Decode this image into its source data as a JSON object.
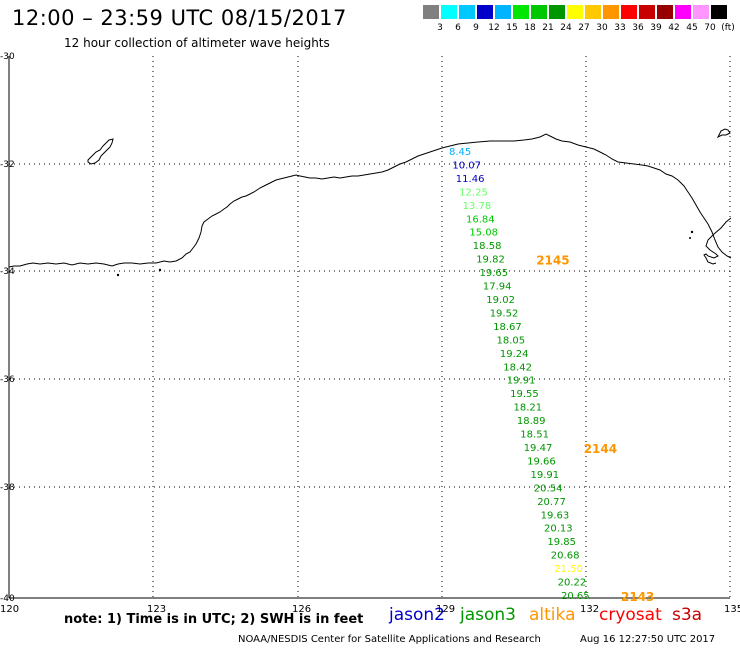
{
  "header": {
    "title": "12:00 – 23:59 UTC 08/15/2017",
    "subtitle": "12 hour collection of altimeter wave heights"
  },
  "color_scale": {
    "labels": [
      "3",
      "6",
      "9",
      "12",
      "15",
      "18",
      "21",
      "24",
      "27",
      "30",
      "33",
      "36",
      "39",
      "42",
      "45",
      "70",
      "(ft)"
    ],
    "colors": [
      "#808080",
      "#00ffff",
      "#00c8ff",
      "#0000c8",
      "#00b4ff",
      "#00e600",
      "#00c800",
      "#009600",
      "#ffff00",
      "#ffc800",
      "#ff9600",
      "#ff0000",
      "#c80000",
      "#960000",
      "#ff00ff",
      "#ff96ff",
      "#000000"
    ]
  },
  "axes": {
    "lon_ticks": [
      "120",
      "123",
      "126",
      "129",
      "132",
      "135"
    ],
    "lat_ticks": [
      "-30",
      "-32",
      "-34",
      "-36",
      "-38",
      "-40"
    ]
  },
  "track": {
    "values": [
      "8.45",
      "10.07",
      "11.46",
      "12.25",
      "13.78",
      "16.84",
      "15.08",
      "18.58",
      "19.82",
      "19.65",
      "17.94",
      "19.02",
      "19.52",
      "18.67",
      "18.05",
      "19.24",
      "18.42",
      "19.91",
      "19.55",
      "18.21",
      "18.89",
      "18.51",
      "19.47",
      "19.66",
      "19.91",
      "20.54",
      "20.77",
      "19.63",
      "20.13",
      "19.85",
      "20.68",
      "21.50",
      "20.22",
      "20.65"
    ],
    "colors": [
      "#00b0ff",
      "#0000c8",
      "#0000c8",
      "#66ff66",
      "#66ff66",
      "#00c800",
      "#00c800",
      "#009600",
      "#009600",
      "#009600",
      "#009600",
      "#009600",
      "#009600",
      "#009600",
      "#009600",
      "#009600",
      "#009600",
      "#009600",
      "#009600",
      "#009600",
      "#009600",
      "#009600",
      "#009600",
      "#009600",
      "#009600",
      "#009600",
      "#009600",
      "#009600",
      "#009600",
      "#009600",
      "#009600",
      "#ffff00",
      "#009600",
      "#009600"
    ],
    "times": [
      "2145",
      "2144",
      "2143"
    ],
    "time_color": "#ff9600"
  },
  "note": "note: 1) Time is in UTC; 2) SWH is in feet",
  "satellites": [
    {
      "name": "jason2",
      "color": "#0000c8"
    },
    {
      "name": "jason3",
      "color": "#009600"
    },
    {
      "name": "altika",
      "color": "#ff9600"
    },
    {
      "name": "cryosat",
      "color": "#ff0000"
    },
    {
      "name": "s3a",
      "color": "#c80000"
    }
  ],
  "footer": {
    "credit": "NOAA/NESDIS Center for Satellite Applications and Research",
    "timestamp": "Aug 16 12:27:50 UTC 2017"
  }
}
